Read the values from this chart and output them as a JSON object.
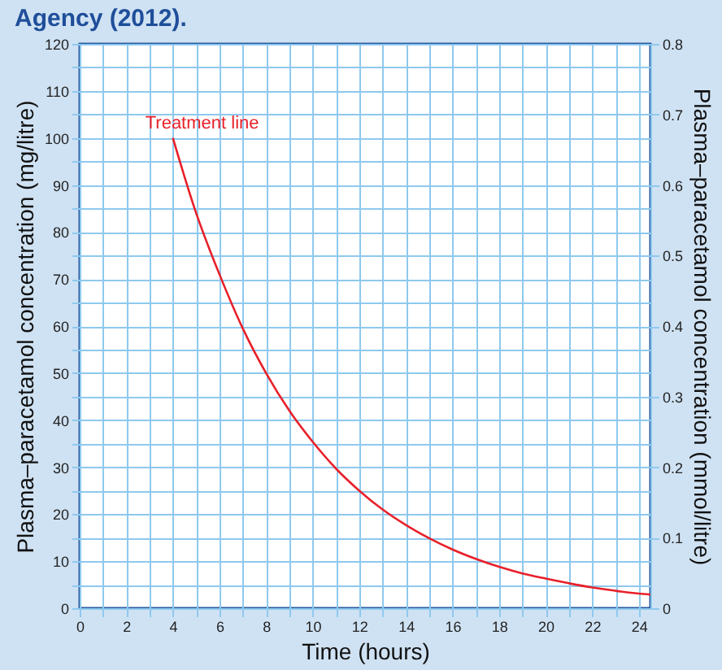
{
  "chart_data": {
    "type": "line",
    "title": "Agency (2012).",
    "xlabel": "Time (hours)",
    "ylabel": "Plasma–paracetamol concentration (mg/litre)",
    "y2label": "Plasma–paracetamol concentration (mmol/litre)",
    "x": [
      4,
      5,
      6,
      7,
      8,
      9,
      10,
      11,
      12,
      13,
      14,
      15,
      16,
      17,
      18,
      19,
      20,
      21,
      22,
      23,
      24,
      24.5
    ],
    "series": [
      {
        "name": "Treatment line",
        "color": "#e8202a",
        "values": [
          100,
          84,
          71,
          59.5,
          50,
          42,
          35.4,
          29.7,
          25,
          21,
          17.7,
          14.9,
          12.5,
          10.5,
          8.8,
          7.4,
          6.3,
          5.3,
          4.4,
          3.7,
          3.1,
          2.9
        ]
      }
    ],
    "xlim": [
      0,
      24.5
    ],
    "xticks": [
      0,
      {
        "value": 1,
        "label": null
      },
      2,
      {
        "value": 3,
        "label": null
      },
      4,
      {
        "value": 5,
        "label": null
      },
      6,
      {
        "value": 7,
        "label": null
      },
      8,
      {
        "value": 9,
        "label": null
      },
      10,
      {
        "value": 11,
        "label": null
      },
      12,
      {
        "value": 13,
        "label": null
      },
      14,
      {
        "value": 15,
        "label": null
      },
      16,
      {
        "value": 17,
        "label": null
      },
      18,
      {
        "value": 19,
        "label": null
      },
      20,
      {
        "value": 21,
        "label": null
      },
      22,
      {
        "value": 23,
        "label": null
      },
      24
    ],
    "ylim": [
      0,
      120
    ],
    "yticks": [
      0,
      {
        "value": 5,
        "label": null
      },
      10,
      {
        "value": 15,
        "label": null
      },
      20,
      {
        "value": 25,
        "label": null
      },
      30,
      {
        "value": 35,
        "label": null
      },
      40,
      {
        "value": 45,
        "label": null
      },
      50,
      {
        "value": 55,
        "label": null
      },
      60,
      {
        "value": 65,
        "label": null
      },
      70,
      {
        "value": 75,
        "label": null
      },
      80,
      {
        "value": 85,
        "label": null
      },
      90,
      {
        "value": 95,
        "label": null
      },
      100,
      {
        "value": 105,
        "label": null
      },
      110,
      {
        "value": 115,
        "label": null
      },
      120
    ],
    "y2lim": [
      0,
      0.8
    ],
    "y2ticks": [
      0,
      0.1,
      0.2,
      0.3,
      0.4,
      0.5,
      0.6,
      0.7,
      0.8
    ],
    "grid": true,
    "legend": false,
    "marker": "none",
    "line_style": "solid"
  }
}
